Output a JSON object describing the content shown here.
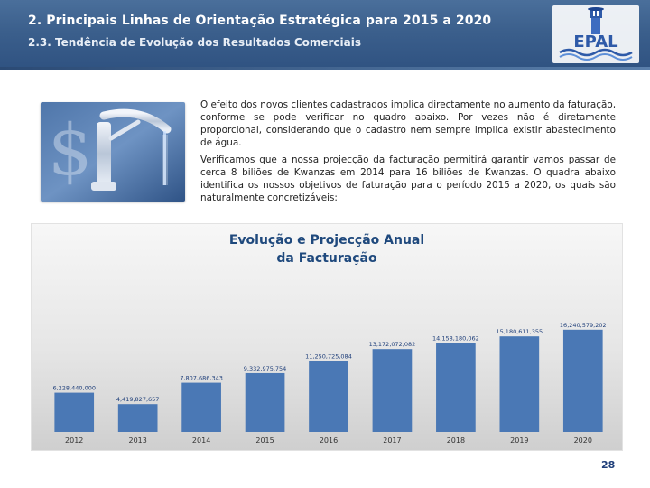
{
  "header": {
    "title": "2.  Principais Linhas de Orientação Estratégica para 2015 a 2020",
    "subtitle": "2.3. Tendência de Evolução dos Resultados Comerciais",
    "logo_text": "EPAL"
  },
  "body": {
    "paragraph1": "O efeito dos novos clientes cadastrados implica directamente no aumento da faturação, conforme se pode verificar no quadro abaixo.  Por vezes não é diretamente proporcional, considerando que o cadastro nem sempre implica existir abastecimento de água.",
    "paragraph2": "Verificamos que a nossa projecção da facturação permitirá garantir vamos passar de cerca 8 biliões de Kwanzas em 2014 para 16 biliões de Kwanzas. O quadra abaixo identifica os nossos objetivos de faturação para o período 2015 a 2020, os quais são naturalmente concretizáveis:"
  },
  "chart_data": {
    "type": "bar",
    "title": "Evolução e Projecção Anual da Facturação",
    "title_line1": "Evolução e Projecção Anual",
    "title_line2": "da Facturação",
    "categories": [
      "2012",
      "2013",
      "2014",
      "2015",
      "2016",
      "2017",
      "2018",
      "2019",
      "2020"
    ],
    "values": [
      6228440000,
      4419827657,
      7807686343,
      9332975754,
      11250725084,
      13172072082,
      14158180062,
      15180611355,
      16240579202
    ],
    "labels": [
      "6,228,440,000",
      "4,419,827,657",
      "7,807,686,343",
      "9,332,975,754",
      "11,250,725,084",
      "13,172,072,082",
      "14,158,180,062",
      "15,180,611,355",
      "16,240,579,202"
    ],
    "ylim": [
      0,
      33000000000
    ],
    "xlabel": "",
    "ylabel": "",
    "grid": false,
    "legend": "none"
  },
  "footer": {
    "page_number": "28"
  },
  "colors": {
    "header": "#3b5f8c",
    "bar": "#4a78b5",
    "title": "#1f497d"
  }
}
